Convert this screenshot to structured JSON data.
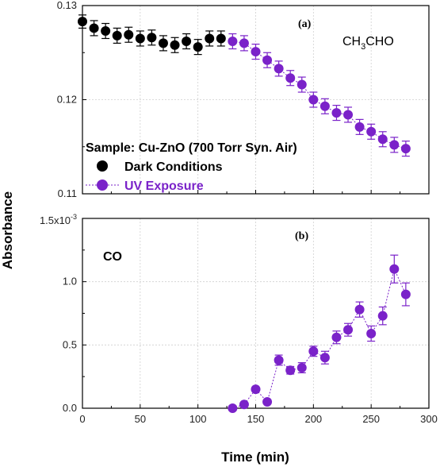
{
  "colors": {
    "dark": "#000000",
    "uv": "#7a22c9",
    "sample": "#d1232a"
  },
  "labels": {
    "xlabel": "Time (min)",
    "ylabel": "Absorbance",
    "panel_a": "(a)",
    "panel_b": "(b)",
    "species_a_prefix": "CH",
    "species_a_sub1": "3",
    "species_a_suffix": "CHO",
    "species_b": "CO",
    "sample": "Sample: Cu-ZnO (700 Torr Syn. Air)",
    "legend_dark": "Dark Conditions",
    "legend_uv": "UV Exposure",
    "b_top_tick_base": "1.5x10",
    "b_top_tick_exp": "-3"
  },
  "chart_data": [
    {
      "type": "scatter",
      "panel": "(a)",
      "xlim": [
        0,
        300
      ],
      "ylim": [
        0.11,
        0.13
      ],
      "x_ticks": [
        "0",
        "50",
        "100",
        "150",
        "200",
        "250",
        "300"
      ],
      "y_ticks": [
        "0.11",
        "0.12",
        "0.13"
      ],
      "grid": true,
      "legend_position": "bottom-left",
      "series": [
        {
          "name": "Dark Conditions",
          "x": [
            0,
            10,
            20,
            30,
            40,
            50,
            60,
            70,
            80,
            90,
            100,
            110,
            120
          ],
          "y": [
            0.1283,
            0.1276,
            0.1273,
            0.1268,
            0.1269,
            0.1265,
            0.1266,
            0.126,
            0.1258,
            0.1262,
            0.1256,
            0.1265,
            0.1265
          ],
          "err": [
            0.0007,
            0.0008,
            0.0008,
            0.0008,
            0.0008,
            0.0008,
            0.0008,
            0.0008,
            0.0008,
            0.0008,
            0.0008,
            0.0008,
            0.0008
          ]
        },
        {
          "name": "UV Exposure",
          "x": [
            130,
            140,
            150,
            160,
            170,
            180,
            190,
            200,
            210,
            220,
            230,
            240,
            250,
            260,
            270,
            280
          ],
          "y": [
            0.1262,
            0.126,
            0.1251,
            0.1242,
            0.1233,
            0.1223,
            0.1216,
            0.12,
            0.1193,
            0.1186,
            0.1184,
            0.1171,
            0.1166,
            0.1158,
            0.1152,
            0.1148
          ],
          "err": [
            0.0008,
            0.0008,
            0.0008,
            0.0008,
            0.0008,
            0.0008,
            0.0008,
            0.0008,
            0.0008,
            0.0008,
            0.0008,
            0.0008,
            0.0008,
            0.0008,
            0.0008,
            0.0008
          ]
        }
      ]
    },
    {
      "type": "line",
      "panel": "(b)",
      "xlim": [
        0,
        300
      ],
      "ylim": [
        0,
        0.0015
      ],
      "x_ticks": [
        "0",
        "50",
        "100",
        "150",
        "200",
        "250",
        "300"
      ],
      "y_ticks": [
        "0.0",
        "0.5",
        "1.0"
      ],
      "grid": true,
      "series": [
        {
          "name": "UV Exposure",
          "x": [
            130,
            140,
            150,
            160,
            170,
            180,
            190,
            200,
            210,
            220,
            230,
            240,
            250,
            260,
            270,
            280
          ],
          "y": [
            0.0,
            3e-05,
            0.00015,
            5e-05,
            0.00038,
            0.0003,
            0.00032,
            0.00045,
            0.0004,
            0.00056,
            0.00062,
            0.00078,
            0.00059,
            0.00073,
            0.0011,
            0.0009
          ],
          "err": [
            1e-05,
            1e-05,
            1e-05,
            1e-05,
            4e-05,
            3e-05,
            4e-05,
            4e-05,
            5e-05,
            5e-05,
            5e-05,
            6e-05,
            6e-05,
            7e-05,
            0.00011,
            9e-05
          ]
        }
      ]
    }
  ]
}
